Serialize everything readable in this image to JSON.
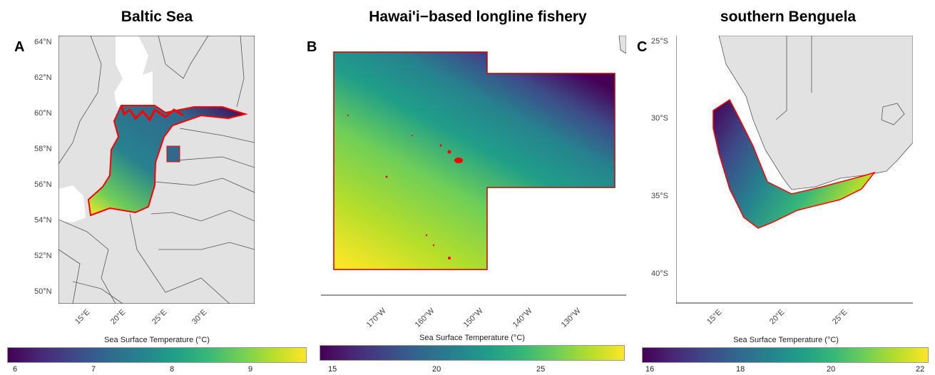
{
  "panels": [
    {
      "title": "Baltic Sea",
      "letter": "A",
      "y_ticks": [
        "64°N",
        "62°N",
        "60°N",
        "58°N",
        "56°N",
        "54°N",
        "52°N",
        "50°N"
      ],
      "x_ticks": [
        "15°E",
        "20°E",
        "25°E",
        "30°E"
      ],
      "colorbar": {
        "title": "Sea Surface Temperature (°C)",
        "labels": [
          "6",
          "7",
          "8",
          "9"
        ]
      }
    },
    {
      "title": "Hawai'i−based longline fishery",
      "letter": "B",
      "y_ticks": [],
      "x_ticks": [
        "170°W",
        "160°W",
        "150°W",
        "140°W",
        "130°W"
      ],
      "colorbar": {
        "title": "Sea Surface Temperature (°C)",
        "labels": [
          "15",
          "20",
          "25"
        ]
      }
    },
    {
      "title": "southern Benguela",
      "letter": "C",
      "y_ticks": [
        "25°S",
        "30°S",
        "35°S",
        "40°S"
      ],
      "x_ticks": [
        "15°E",
        "20°E",
        "25°E"
      ],
      "colorbar": {
        "title": "Sea Surface Temperature (°C)",
        "labels": [
          "16",
          "18",
          "20",
          "22"
        ]
      }
    }
  ],
  "colors": {
    "land": "#e2e2e2",
    "border_line": "#555555",
    "region_outline": "#ff0000",
    "viridis": [
      "#440154",
      "#482878",
      "#3e4989",
      "#31688e",
      "#26828e",
      "#1f9e89",
      "#35b779",
      "#6ece58",
      "#b5de2b",
      "#fde725"
    ]
  }
}
